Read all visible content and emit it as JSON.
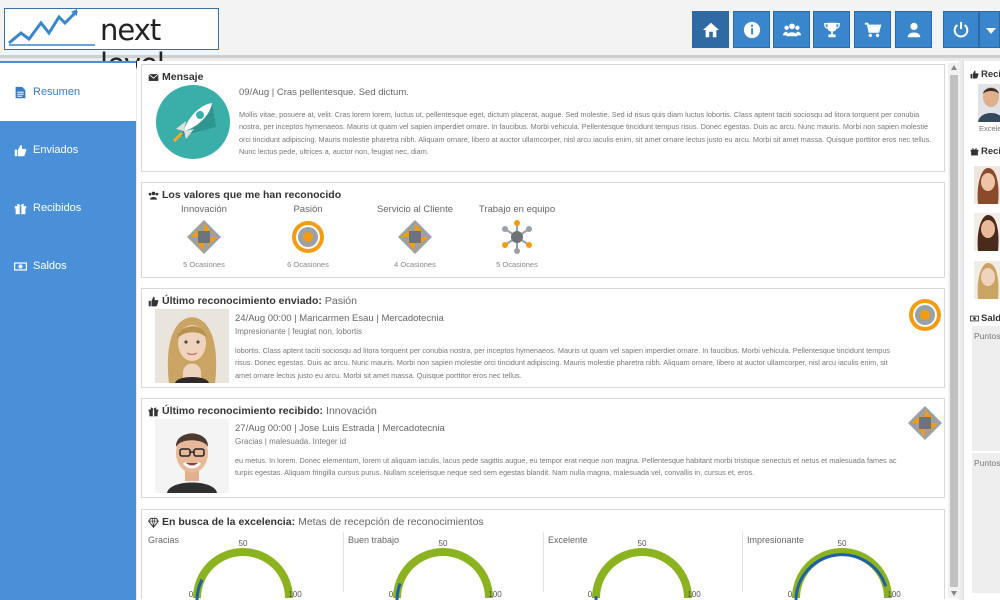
{
  "header": {
    "logo_text": "next level",
    "nav": [
      "home-icon",
      "info-icon",
      "users-icon",
      "trophy-icon",
      "cart-icon",
      "user-icon",
      "power-icon"
    ]
  },
  "sidebar": {
    "items": [
      {
        "label": "Resumen",
        "icon": "document-icon",
        "active": true
      },
      {
        "label": "Enviados",
        "icon": "thumbs-up-icon"
      },
      {
        "label": "Recibidos",
        "icon": "gift-icon"
      },
      {
        "label": "Saldos",
        "icon": "money-icon"
      }
    ]
  },
  "mensaje": {
    "title": "Mensaje",
    "date_line": "09/Aug | Cras pellentesque. Sed dictum.",
    "body": "Mollis vitae, posuere at, velit. Cras lorem lorem, luctus ut, pellentesque eget, dictum placerat, augue. Sed molestie. Sed id risus quis diam luctus lobortis. Class aptent taciti sociosqu ad litora torquent per conubia nostra, per inceptos hymenaeos. Mauris ut quam vel sapien imperdiet ornare. In faucibus. Morbi vehicula. Pellentesque tincidunt tempus risus. Donec egestas. Duis ac arcu. Nunc mauris. Morbi non sapien molestie orci tincidunt adipiscing. Mauris molestie pharetra nibh. Aliquam ornare, libero at auctor ullamcorper, nisl arcu iaculis enim, sit amet ornare lectus justo eu arcu. Morbi sit amet massa. Quisque porttitor eros nec tellus. Nunc lectus pede, ultrices a, auctor non, feugiat nec, diam."
  },
  "valores": {
    "title": "Los valores que me han reconocido",
    "items": [
      {
        "name": "Innovación",
        "count": "5 Ocasiones",
        "icon": "innovation-icon"
      },
      {
        "name": "Pasión",
        "count": "6 Ocasiones",
        "icon": "passion-icon"
      },
      {
        "name": "Servicio al Cliente",
        "count": "4 Ocasiones",
        "icon": "service-icon"
      },
      {
        "name": "Trabajo en equipo",
        "count": "5 Ocasiones",
        "icon": "teamwork-icon"
      }
    ]
  },
  "enviado": {
    "title": "Último reconocimiento enviado:",
    "value": "Pasión",
    "meta": "24/Aug 00:00 | Maricarmen Esau | Mercadotecnia",
    "sub": "Impresionante | feugiat non, lobortis",
    "body": "lobortis. Class aptent taciti sociosqu ad litora torquent per conubia nostra, per inceptos hymenaeos. Mauris ut quam vel sapien imperdiet ornare. In faucibus. Morbi vehicula. Pellentesque tincidunt tempus risus. Donec egestas. Duis ac arcu. Nunc mauris. Morbi non sapien molestie orci tincidunt adipiscing. Mauris molestie pharetra nibh. Aliquam ornare, libero at auctor ullamcorper, nisl arcu iaculis enim, sit amet ornare lectus justo eu arcu. Morbi sit amet massa. Quisque porttitor eros nec tellus."
  },
  "recibido": {
    "title": "Último reconocimiento recibido:",
    "value": "Innovación",
    "meta": "27/Aug 00:00 | Jose Luis Estrada | Mercadotecnia",
    "sub": "Gracias | malesuada. Integer id",
    "body": "eu metus. In lorem. Donec elementum, lorem ut aliquam iaculis, lacus pede sagittis augue, eu tempor erat neque non magna. Pellentesque habitant morbi tristique senectus et netus et malesuada fames ac turpis egestas. Aliquam fringilla cursus purus. Nullam scelerisque neque sed sem egestas blandit. Nam nulla magna, malesuada vel, convallis in, cursus et, eros."
  },
  "excelencia": {
    "title": "En busca de la excelencia:",
    "subtitle": "Metas de recepción de reconocimientos",
    "gauge_min": "0",
    "gauge_mid": "50",
    "gauge_max": "100",
    "colors": {
      "track": "#8ab31f",
      "value": "#1f5fa8"
    },
    "gauges": [
      {
        "label": "Gracias",
        "value": 15
      },
      {
        "label": "Buen trabajo",
        "value": 12
      },
      {
        "label": "Excelente",
        "value": 3
      },
      {
        "label": "Impresionante",
        "value": 90
      }
    ]
  },
  "right_panel": {
    "recibidos_title": "Recibidos",
    "person_label": "Excelente",
    "recibidos2_title": "Recibidos",
    "saldos_title": "Saldos",
    "puntos1": "Puntos",
    "puntos2": "Puntos"
  }
}
